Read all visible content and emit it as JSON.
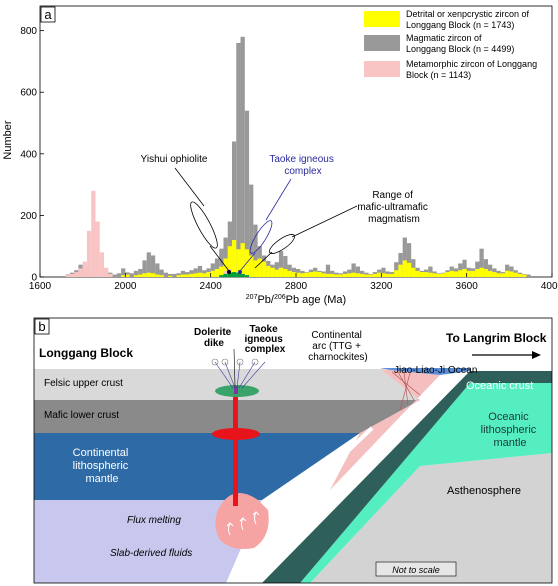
{
  "panel_a": {
    "label": "a",
    "y_axis_label": "Number",
    "x_axis_label": {
      "sup1": "207",
      "mid": "Pb/",
      "sup2": "206",
      "tail": "Pb age (Ma)"
    },
    "legend": [
      {
        "lines": [
          "Detrital or xenpcrystic zircon of",
          "Longgang Block (n = 1743)"
        ],
        "color": "#ffff00"
      },
      {
        "lines": [
          "Magmatic zircon of",
          "Longgang Block (n = 4499)"
        ],
        "color": "#999999"
      },
      {
        "lines": [
          "Metamorphic zircon of Longgang",
          "Block  (n = 1143)"
        ],
        "color": "#f9c4c4"
      }
    ],
    "annotations": {
      "yishui": "Yishui ophiolite",
      "taoke": [
        "Taoke igneous",
        "complex"
      ],
      "range": [
        "Range of",
        "mafic-ultramafic",
        "magmatism"
      ]
    }
  },
  "chart_data": {
    "type": "bar",
    "xlim": [
      1600,
      4000
    ],
    "ylim": [
      0,
      880
    ],
    "x_ticks": [
      1600,
      2000,
      2400,
      2800,
      3200,
      3600,
      4000
    ],
    "y_ticks": [
      0,
      200,
      400,
      600,
      800
    ],
    "bin_width": 20,
    "grid": false,
    "legend_position": "top-right",
    "series": [
      {
        "name": "Magmatic zircon of Longgang Block (n = 4499)",
        "color": "#999999",
        "points": [
          [
            1720,
            8
          ],
          [
            1740,
            14
          ],
          [
            1760,
            22
          ],
          [
            1780,
            40
          ],
          [
            1800,
            30
          ],
          [
            1820,
            18
          ],
          [
            1840,
            10
          ],
          [
            1860,
            14
          ],
          [
            1880,
            26
          ],
          [
            1900,
            18
          ],
          [
            1920,
            14
          ],
          [
            1940,
            8
          ],
          [
            1960,
            12
          ],
          [
            1980,
            28
          ],
          [
            2000,
            15
          ],
          [
            2020,
            12
          ],
          [
            2040,
            20
          ],
          [
            2060,
            26
          ],
          [
            2080,
            54
          ],
          [
            2100,
            80
          ],
          [
            2120,
            70
          ],
          [
            2140,
            44
          ],
          [
            2160,
            24
          ],
          [
            2180,
            14
          ],
          [
            2200,
            10
          ],
          [
            2220,
            10
          ],
          [
            2240,
            12
          ],
          [
            2260,
            20
          ],
          [
            2280,
            16
          ],
          [
            2300,
            22
          ],
          [
            2320,
            28
          ],
          [
            2340,
            36
          ],
          [
            2360,
            22
          ],
          [
            2380,
            28
          ],
          [
            2400,
            44
          ],
          [
            2420,
            60
          ],
          [
            2440,
            92
          ],
          [
            2460,
            128
          ],
          [
            2480,
            180
          ],
          [
            2500,
            440
          ],
          [
            2520,
            760
          ],
          [
            2540,
            780
          ],
          [
            2560,
            540
          ],
          [
            2580,
            300
          ],
          [
            2600,
            170
          ],
          [
            2620,
            100
          ],
          [
            2640,
            70
          ],
          [
            2660,
            52
          ],
          [
            2680,
            40
          ],
          [
            2700,
            48
          ],
          [
            2720,
            84
          ],
          [
            2740,
            68
          ],
          [
            2760,
            40
          ],
          [
            2780,
            30
          ],
          [
            2800,
            26
          ],
          [
            2820,
            20
          ],
          [
            2840,
            16
          ],
          [
            2860,
            24
          ],
          [
            2880,
            30
          ],
          [
            2900,
            20
          ],
          [
            2920,
            18
          ],
          [
            2940,
            40
          ],
          [
            2960,
            20
          ],
          [
            2980,
            14
          ],
          [
            3000,
            12
          ],
          [
            3020,
            18
          ],
          [
            3040,
            24
          ],
          [
            3060,
            44
          ],
          [
            3080,
            34
          ],
          [
            3100,
            20
          ],
          [
            3120,
            14
          ],
          [
            3140,
            10
          ],
          [
            3160,
            16
          ],
          [
            3180,
            24
          ],
          [
            3200,
            30
          ],
          [
            3220,
            18
          ],
          [
            3240,
            16
          ],
          [
            3260,
            48
          ],
          [
            3280,
            78
          ],
          [
            3300,
            128
          ],
          [
            3320,
            110
          ],
          [
            3340,
            58
          ],
          [
            3360,
            30
          ],
          [
            3380,
            20
          ],
          [
            3400,
            24
          ],
          [
            3420,
            34
          ],
          [
            3440,
            18
          ],
          [
            3460,
            12
          ],
          [
            3480,
            14
          ],
          [
            3500,
            22
          ],
          [
            3520,
            34
          ],
          [
            3540,
            28
          ],
          [
            3560,
            44
          ],
          [
            3580,
            56
          ],
          [
            3600,
            30
          ],
          [
            3620,
            28
          ],
          [
            3640,
            50
          ],
          [
            3660,
            92
          ],
          [
            3680,
            58
          ],
          [
            3700,
            40
          ],
          [
            3720,
            28
          ],
          [
            3740,
            20
          ],
          [
            3760,
            16
          ],
          [
            3780,
            40
          ],
          [
            3800,
            34
          ],
          [
            3820,
            22
          ],
          [
            3840,
            14
          ],
          [
            3860,
            10
          ],
          [
            3880,
            8
          ]
        ]
      },
      {
        "name": "Detrital or xenpcrystic zircon of Longgang Block (n = 1743)",
        "color": "#ffff00",
        "points": [
          [
            1740,
            4
          ],
          [
            1760,
            6
          ],
          [
            1780,
            8
          ],
          [
            1800,
            6
          ],
          [
            1820,
            4
          ],
          [
            1860,
            6
          ],
          [
            1880,
            10
          ],
          [
            1900,
            8
          ],
          [
            1920,
            6
          ],
          [
            1980,
            6
          ],
          [
            2000,
            8
          ],
          [
            2040,
            6
          ],
          [
            2060,
            8
          ],
          [
            2080,
            12
          ],
          [
            2100,
            14
          ],
          [
            2120,
            12
          ],
          [
            2140,
            8
          ],
          [
            2160,
            6
          ],
          [
            2200,
            4
          ],
          [
            2240,
            6
          ],
          [
            2260,
            8
          ],
          [
            2280,
            8
          ],
          [
            2300,
            10
          ],
          [
            2320,
            12
          ],
          [
            2340,
            14
          ],
          [
            2360,
            12
          ],
          [
            2380,
            16
          ],
          [
            2400,
            20
          ],
          [
            2420,
            26
          ],
          [
            2440,
            34
          ],
          [
            2460,
            60
          ],
          [
            2480,
            100
          ],
          [
            2500,
            120
          ],
          [
            2520,
            90
          ],
          [
            2540,
            110
          ],
          [
            2560,
            90
          ],
          [
            2580,
            70
          ],
          [
            2600,
            54
          ],
          [
            2620,
            60
          ],
          [
            2640,
            50
          ],
          [
            2660,
            36
          ],
          [
            2680,
            30
          ],
          [
            2700,
            24
          ],
          [
            2720,
            30
          ],
          [
            2740,
            26
          ],
          [
            2760,
            20
          ],
          [
            2780,
            16
          ],
          [
            2800,
            14
          ],
          [
            2820,
            12
          ],
          [
            2840,
            14
          ],
          [
            2860,
            16
          ],
          [
            2880,
            18
          ],
          [
            2900,
            16
          ],
          [
            2920,
            12
          ],
          [
            2940,
            10
          ],
          [
            2960,
            10
          ],
          [
            2980,
            8
          ],
          [
            3000,
            8
          ],
          [
            3020,
            10
          ],
          [
            3040,
            12
          ],
          [
            3060,
            14
          ],
          [
            3080,
            12
          ],
          [
            3100,
            10
          ],
          [
            3120,
            8
          ],
          [
            3140,
            8
          ],
          [
            3160,
            10
          ],
          [
            3180,
            14
          ],
          [
            3200,
            12
          ],
          [
            3220,
            10
          ],
          [
            3240,
            10
          ],
          [
            3260,
            22
          ],
          [
            3280,
            40
          ],
          [
            3300,
            54
          ],
          [
            3320,
            46
          ],
          [
            3340,
            30
          ],
          [
            3360,
            20
          ],
          [
            3380,
            16
          ],
          [
            3400,
            16
          ],
          [
            3420,
            14
          ],
          [
            3440,
            12
          ],
          [
            3460,
            10
          ],
          [
            3480,
            12
          ],
          [
            3500,
            16
          ],
          [
            3520,
            20
          ],
          [
            3540,
            18
          ],
          [
            3560,
            22
          ],
          [
            3580,
            26
          ],
          [
            3600,
            20
          ],
          [
            3620,
            20
          ],
          [
            3640,
            26
          ],
          [
            3660,
            30
          ],
          [
            3680,
            26
          ],
          [
            3700,
            20
          ],
          [
            3720,
            16
          ],
          [
            3740,
            12
          ],
          [
            3760,
            12
          ],
          [
            3780,
            20
          ],
          [
            3800,
            18
          ],
          [
            3820,
            14
          ],
          [
            3840,
            10
          ],
          [
            3860,
            8
          ]
        ]
      },
      {
        "name": "Metamorphic zircon of Longgang Block (n = 1143)",
        "color": "#f9c4c4",
        "points": [
          [
            1720,
            6
          ],
          [
            1740,
            10
          ],
          [
            1760,
            16
          ],
          [
            1780,
            28
          ],
          [
            1800,
            50
          ],
          [
            1820,
            150
          ],
          [
            1840,
            280
          ],
          [
            1860,
            180
          ],
          [
            1880,
            80
          ],
          [
            1900,
            30
          ],
          [
            1920,
            10
          ],
          [
            2460,
            20
          ],
          [
            2480,
            26
          ],
          [
            2500,
            14
          ]
        ]
      },
      {
        "name": "Range of mafic-ultramafic magmatism",
        "color": "#009f3c",
        "points": [
          [
            2440,
            6
          ],
          [
            2460,
            10
          ],
          [
            2480,
            14
          ],
          [
            2500,
            16
          ],
          [
            2520,
            14
          ],
          [
            2540,
            10
          ],
          [
            2560,
            6
          ]
        ]
      }
    ]
  },
  "panel_b": {
    "label": "b",
    "longgang_block": "Longgang Block",
    "to_langrim": "To Langrim Block",
    "dolerite_dike": [
      "Dolerite",
      "dike"
    ],
    "taoke_complex": [
      "Taoke",
      "igneous",
      "complex"
    ],
    "continental_arc": [
      "Continental",
      "arc (TTG +",
      "charnockites)"
    ],
    "jiao_liao_ji": "Jiao-Liao-Ji Ocean",
    "felsic_upper_crust": "Felsic upper crust",
    "mafic_lower_crust": "Mafic lower crust",
    "continental_mantle": [
      "Continental",
      "lithospheric",
      "mantle"
    ],
    "oceanic_crust": "Oceanic crust",
    "oceanic_mantle": [
      "Oceanic",
      "lithospheric",
      "mantle"
    ],
    "asthenosphere": "Asthenosphere",
    "flux_melting": "Flux melting",
    "slab_fluids": "Slab-derived fluids",
    "not_to_scale": "Not to scale"
  }
}
